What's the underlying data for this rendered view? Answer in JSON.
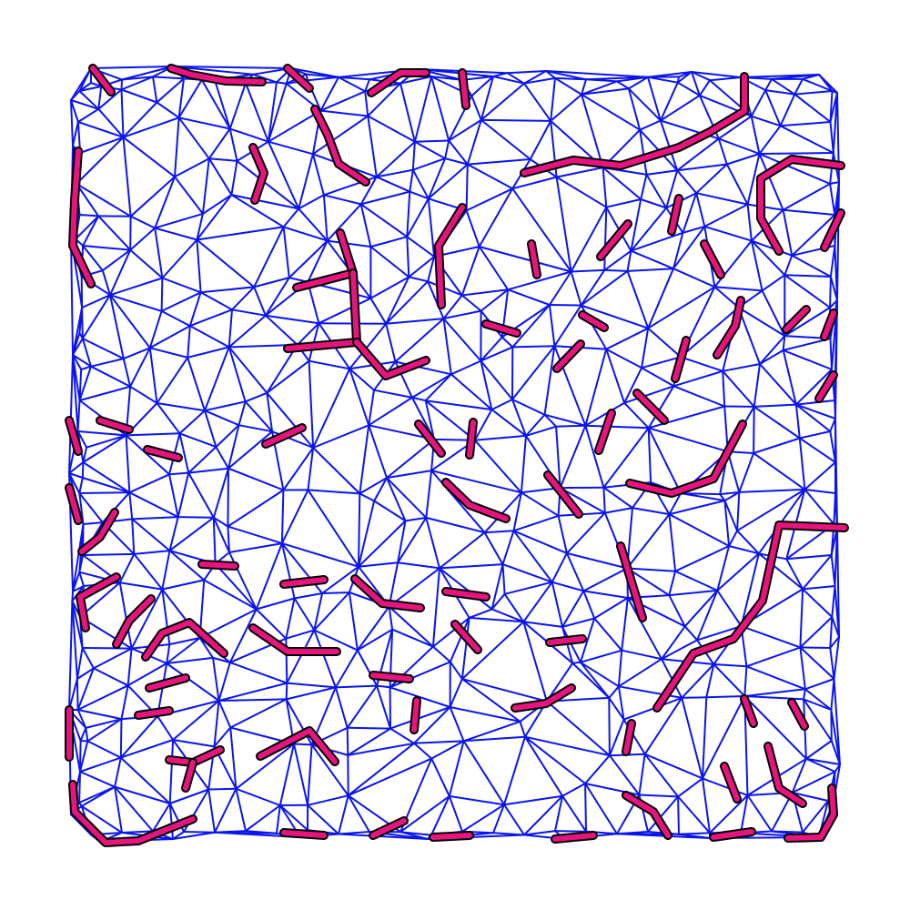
{
  "diagram": {
    "type": "triangulated-mesh-with-highlighted-paths",
    "mesh_color": "#0a14f0",
    "highlight_color": "#e6157d",
    "highlight_outline_color": "#000000",
    "background": "#ffffff"
  }
}
